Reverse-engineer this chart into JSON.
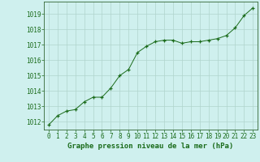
{
  "x": [
    0,
    1,
    2,
    3,
    4,
    5,
    6,
    7,
    8,
    9,
    10,
    11,
    12,
    13,
    14,
    15,
    16,
    17,
    18,
    19,
    20,
    21,
    22,
    23
  ],
  "y": [
    1011.8,
    1012.4,
    1012.7,
    1012.8,
    1013.3,
    1013.6,
    1013.6,
    1014.2,
    1015.0,
    1015.4,
    1016.5,
    1016.9,
    1017.2,
    1017.3,
    1017.3,
    1017.1,
    1017.2,
    1017.2,
    1017.3,
    1017.4,
    1017.6,
    1018.1,
    1018.9,
    1019.4
  ],
  "ylim": [
    1011.5,
    1019.8
  ],
  "yticks": [
    1012,
    1013,
    1014,
    1015,
    1016,
    1017,
    1018,
    1019
  ],
  "xticks": [
    0,
    1,
    2,
    3,
    4,
    5,
    6,
    7,
    8,
    9,
    10,
    11,
    12,
    13,
    14,
    15,
    16,
    17,
    18,
    19,
    20,
    21,
    22,
    23
  ],
  "xlabel": "Graphe pression niveau de la mer (hPa)",
  "line_color": "#1a6b1a",
  "marker": "+",
  "bg_color": "#cff0ee",
  "grid_color": "#b0d4cc",
  "text_color": "#1a6b1a",
  "axis_color": "#336633",
  "xlabel_fontsize": 6.5,
  "tick_fontsize": 5.5
}
